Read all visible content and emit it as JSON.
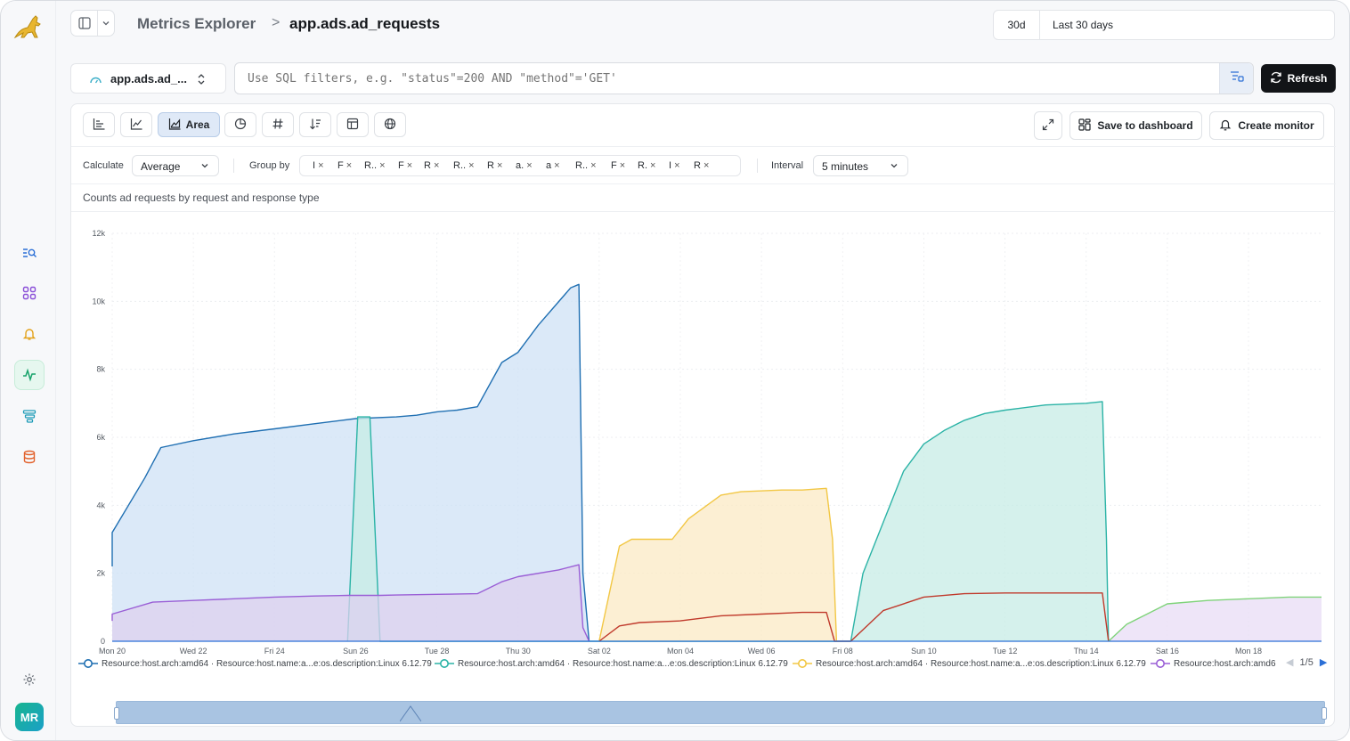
{
  "header": {
    "breadcrumb_root": "Metrics Explorer",
    "breadcrumb_sep": ">",
    "breadcrumb_current": "app.ads.ad_requests",
    "time_code": "30d",
    "time_label": "Last 30 days"
  },
  "query": {
    "metric_select": "app.ads.ad_...",
    "sql_placeholder": "Use SQL filters, e.g. \"status\"=200 AND \"method\"='GET'",
    "refresh_label": "Refresh"
  },
  "toolbar": {
    "area_label": "Area",
    "save_label": "Save to dashboard",
    "monitor_label": "Create monitor"
  },
  "options": {
    "calculate_label": "Calculate",
    "calculate_value": "Average",
    "group_by_label": "Group by",
    "group_chips": [
      "I",
      "F",
      "R..",
      "F",
      "R",
      "R..",
      "R",
      "a.",
      "a",
      "R..",
      "F",
      "R.",
      "I",
      "R"
    ],
    "interval_label": "Interval",
    "interval_value": "5 minutes"
  },
  "chart_title": "Counts ad requests by request and response type",
  "colors": {
    "blue": "#1f6fb2",
    "teal": "#2bb3a6",
    "yellow": "#f2c744",
    "purple": "#9a5fd6",
    "red": "#c0392b",
    "green": "#7fd37a",
    "accent": "#121417"
  },
  "chart_data": {
    "type": "area",
    "x_ticks": [
      "Mon 20",
      "Wed 22",
      "Fri 24",
      "Sun 26",
      "Tue 28",
      "Thu 30",
      "Sat 02",
      "Mon 04",
      "Wed 06",
      "Fri 08",
      "Sun 10",
      "Tue 12",
      "Thu 14",
      "Sat 16",
      "Mon 18"
    ],
    "y_ticks": [
      "0",
      "2k",
      "4k",
      "6k",
      "8k",
      "10k",
      "12k"
    ],
    "ylim": [
      0,
      12000
    ],
    "xlim": [
      0,
      29.8
    ],
    "grid": true,
    "series": [
      {
        "key": "blue",
        "color": "#1f6fb2",
        "fill": "#cfe1f5",
        "x": [
          -0.5,
          0,
          0.8,
          1.2,
          2,
          3,
          4,
          5,
          6,
          7,
          7.5,
          8,
          8.5,
          9,
          9.6,
          10,
          10.5,
          11.3,
          11.5,
          11.6,
          11.75
        ],
        "y": [
          2200,
          3200,
          4800,
          5700,
          5900,
          6100,
          6250,
          6400,
          6550,
          6600,
          6650,
          6750,
          6800,
          6900,
          8200,
          8500,
          9300,
          10400,
          10500,
          2000,
          0
        ]
      },
      {
        "key": "teal",
        "color": "#2bb3a6",
        "fill": "#c7ece6",
        "x": [
          5.8,
          6.05,
          6.2,
          6.35,
          6.6,
          18.2,
          18.5,
          19.5,
          20,
          20.5,
          21,
          21.5,
          22,
          23,
          24,
          24.4,
          24.5,
          24.55
        ],
        "y": [
          0,
          6600,
          6600,
          6600,
          0,
          0,
          2000,
          5000,
          5800,
          6200,
          6500,
          6700,
          6800,
          6950,
          7000,
          7050,
          3000,
          0
        ]
      },
      {
        "key": "yellow",
        "color": "#f2c744",
        "fill": "#fbe9c4",
        "x": [
          12,
          12.5,
          12.8,
          13.8,
          14.2,
          15,
          15.5,
          16.5,
          17,
          17.6,
          17.75,
          17.85
        ],
        "y": [
          0,
          2800,
          3000,
          3000,
          3600,
          4300,
          4400,
          4450,
          4450,
          4500,
          3000,
          0
        ]
      },
      {
        "key": "purple",
        "color": "#9a5fd6",
        "fill": "#ddd0ef",
        "x": [
          -0.5,
          0,
          1,
          2,
          3,
          4,
          5,
          5.8,
          6,
          6.2,
          6.4,
          6.6,
          7,
          8,
          9,
          9.6,
          10,
          11,
          11.5,
          11.6,
          11.75
        ],
        "y": [
          600,
          800,
          1150,
          1200,
          1250,
          1300,
          1330,
          1350,
          1350,
          1350,
          1350,
          1350,
          1360,
          1380,
          1400,
          1750,
          1900,
          2100,
          2250,
          400,
          0
        ]
      },
      {
        "key": "red",
        "color": "#c0392b",
        "fill": "none",
        "x": [
          12,
          12.5,
          13,
          14,
          15,
          16,
          17,
          17.6,
          17.8,
          18.2,
          19,
          20,
          21,
          22,
          23,
          24,
          24.4,
          24.55
        ],
        "y": [
          0,
          450,
          550,
          600,
          750,
          800,
          850,
          850,
          0,
          0,
          900,
          1300,
          1400,
          1420,
          1420,
          1420,
          1420,
          0
        ]
      },
      {
        "key": "green",
        "color": "#7fd37a",
        "fill": "#e8dcf6",
        "x": [
          24.55,
          25,
          25.5,
          26,
          27,
          28,
          29,
          29.8
        ],
        "y": [
          0,
          500,
          800,
          1100,
          1200,
          1250,
          1300,
          1300
        ]
      }
    ]
  },
  "legend": {
    "entries": [
      {
        "color": "#1f6fb2",
        "text": "Resource:host.arch:amd64 · Resource:host.name:a...e:os.description:Linux 6.12.79"
      },
      {
        "color": "#2bb3a6",
        "text": "Resource:host.arch:amd64 · Resource:host.name:a...e:os.description:Linux 6.12.79"
      },
      {
        "color": "#f2c744",
        "text": "Resource:host.arch:amd64 · Resource:host.name:a...e:os.description:Linux 6.12.79"
      },
      {
        "color": "#9a5fd6",
        "text": "Resource:host.arch:amd6"
      }
    ],
    "page": "1/5"
  },
  "user": {
    "initials": "MR"
  }
}
